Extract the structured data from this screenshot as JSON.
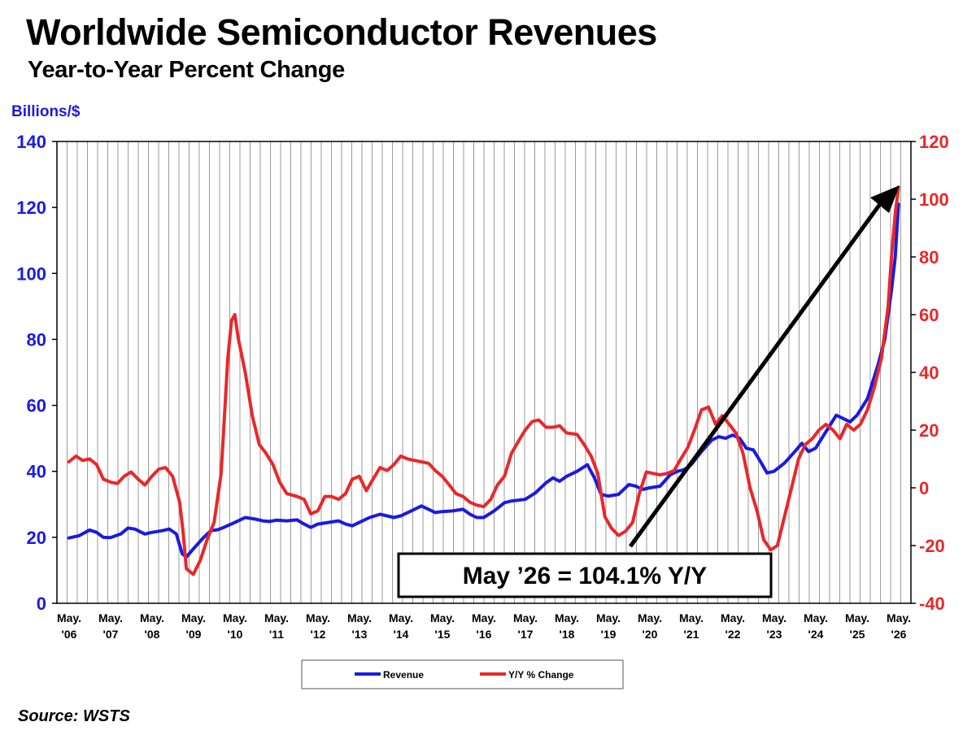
{
  "chart_data": {
    "type": "line",
    "title": "Worldwide Semiconductor Revenues",
    "subtitle": "Year-to-Year Percent Change",
    "source": "Source: WSTS",
    "ylabel_left": "Billions/$",
    "ylabel_right": "",
    "ylim_left": [
      0,
      140
    ],
    "ylim_right": [
      -40,
      120
    ],
    "yticks_left": [
      "0",
      "20",
      "40",
      "60",
      "80",
      "100",
      "120",
      "140"
    ],
    "yticks_right": [
      "-40",
      "-20",
      "0",
      "20",
      "40",
      "60",
      "80",
      "100",
      "120"
    ],
    "x_ticks": [
      {
        "top": "May.",
        "bottom": "'06"
      },
      {
        "top": "May.",
        "bottom": "'07"
      },
      {
        "top": "May.",
        "bottom": "'08"
      },
      {
        "top": "May.",
        "bottom": "'09"
      },
      {
        "top": "May.",
        "bottom": "'10"
      },
      {
        "top": "May.",
        "bottom": "'11"
      },
      {
        "top": "May.",
        "bottom": "'12"
      },
      {
        "top": "May.",
        "bottom": "'13"
      },
      {
        "top": "May.",
        "bottom": "'14"
      },
      {
        "top": "May.",
        "bottom": "'15"
      },
      {
        "top": "May.",
        "bottom": "'16"
      },
      {
        "top": "May.",
        "bottom": "'17"
      },
      {
        "top": "May.",
        "bottom": "'18"
      },
      {
        "top": "May.",
        "bottom": "'19"
      },
      {
        "top": "May.",
        "bottom": "'20"
      },
      {
        "top": "May.",
        "bottom": "'21"
      },
      {
        "top": "May.",
        "bottom": "'22"
      },
      {
        "top": "May.",
        "bottom": "'23"
      },
      {
        "top": "May.",
        "bottom": "'24"
      },
      {
        "top": "May.",
        "bottom": "'25"
      },
      {
        "top": "May.",
        "bottom": "'26"
      }
    ],
    "grid": true,
    "legend_position": "bottom-center",
    "annotation": "May ’26 = 104.1% Y/Y",
    "series": [
      {
        "name": "Revenue",
        "axis": "left",
        "color": "#1a1ae0",
        "points": [
          [
            2006.37,
            19.8
          ],
          [
            2006.62,
            20.5
          ],
          [
            2006.87,
            22.2
          ],
          [
            2007.04,
            21.5
          ],
          [
            2007.2,
            20.0
          ],
          [
            2007.37,
            19.9
          ],
          [
            2007.62,
            21.0
          ],
          [
            2007.79,
            22.8
          ],
          [
            2007.96,
            22.5
          ],
          [
            2008.2,
            21.0
          ],
          [
            2008.37,
            21.5
          ],
          [
            2008.62,
            22.0
          ],
          [
            2008.79,
            22.5
          ],
          [
            2008.96,
            21.0
          ],
          [
            2009.1,
            15.0
          ],
          [
            2009.2,
            14.0
          ],
          [
            2009.37,
            16.5
          ],
          [
            2009.62,
            20.0
          ],
          [
            2009.79,
            22.0
          ],
          [
            2009.96,
            22.3
          ],
          [
            2010.1,
            23.0
          ],
          [
            2010.37,
            24.5
          ],
          [
            2010.62,
            26.0
          ],
          [
            2010.87,
            25.5
          ],
          [
            2011.04,
            25.0
          ],
          [
            2011.2,
            24.8
          ],
          [
            2011.37,
            25.2
          ],
          [
            2011.62,
            25.0
          ],
          [
            2011.87,
            25.3
          ],
          [
            2012.04,
            24.0
          ],
          [
            2012.2,
            23.0
          ],
          [
            2012.37,
            24.0
          ],
          [
            2012.62,
            24.5
          ],
          [
            2012.87,
            25.0
          ],
          [
            2013.04,
            24.0
          ],
          [
            2013.2,
            23.5
          ],
          [
            2013.37,
            24.5
          ],
          [
            2013.62,
            26.0
          ],
          [
            2013.87,
            27.0
          ],
          [
            2014.04,
            26.5
          ],
          [
            2014.2,
            26.0
          ],
          [
            2014.37,
            26.5
          ],
          [
            2014.62,
            28.0
          ],
          [
            2014.87,
            29.5
          ],
          [
            2015.04,
            28.5
          ],
          [
            2015.2,
            27.5
          ],
          [
            2015.37,
            27.8
          ],
          [
            2015.62,
            28.0
          ],
          [
            2015.87,
            28.5
          ],
          [
            2016.04,
            27.0
          ],
          [
            2016.2,
            26.0
          ],
          [
            2016.37,
            26.0
          ],
          [
            2016.62,
            28.0
          ],
          [
            2016.87,
            30.5
          ],
          [
            2017.04,
            31.0
          ],
          [
            2017.37,
            31.5
          ],
          [
            2017.62,
            33.5
          ],
          [
            2017.87,
            36.5
          ],
          [
            2018.04,
            38.0
          ],
          [
            2018.2,
            37.0
          ],
          [
            2018.37,
            38.5
          ],
          [
            2018.62,
            40.0
          ],
          [
            2018.87,
            42.0
          ],
          [
            2019.04,
            38.0
          ],
          [
            2019.2,
            33.0
          ],
          [
            2019.37,
            32.5
          ],
          [
            2019.62,
            33.0
          ],
          [
            2019.87,
            36.0
          ],
          [
            2020.04,
            35.5
          ],
          [
            2020.2,
            34.5
          ],
          [
            2020.37,
            35.0
          ],
          [
            2020.62,
            35.5
          ],
          [
            2020.87,
            39.0
          ],
          [
            2021.04,
            40.0
          ],
          [
            2021.2,
            40.5
          ],
          [
            2021.37,
            42.0
          ],
          [
            2021.62,
            46.0
          ],
          [
            2021.87,
            49.5
          ],
          [
            2022.04,
            50.5
          ],
          [
            2022.2,
            50.0
          ],
          [
            2022.37,
            51.0
          ],
          [
            2022.54,
            50.0
          ],
          [
            2022.7,
            47.0
          ],
          [
            2022.87,
            46.5
          ],
          [
            2023.04,
            43.0
          ],
          [
            2023.2,
            39.5
          ],
          [
            2023.37,
            40.0
          ],
          [
            2023.62,
            42.5
          ],
          [
            2023.87,
            46.0
          ],
          [
            2024.04,
            48.5
          ],
          [
            2024.2,
            46.0
          ],
          [
            2024.37,
            47.0
          ],
          [
            2024.62,
            52.0
          ],
          [
            2024.87,
            57.0
          ],
          [
            2025.04,
            56.0
          ],
          [
            2025.2,
            55.0
          ],
          [
            2025.37,
            57.0
          ],
          [
            2025.62,
            62.0
          ],
          [
            2025.87,
            72.0
          ],
          [
            2026.04,
            80.0
          ],
          [
            2026.2,
            95.0
          ],
          [
            2026.29,
            105.0
          ],
          [
            2026.37,
            121.0
          ]
        ]
      },
      {
        "name": "Y/Y % Change",
        "axis": "right",
        "color": "#e8282a",
        "points": [
          [
            2006.37,
            9.0
          ],
          [
            2006.54,
            11.0
          ],
          [
            2006.7,
            9.5
          ],
          [
            2006.87,
            10.0
          ],
          [
            2007.04,
            8.0
          ],
          [
            2007.2,
            3.0
          ],
          [
            2007.37,
            2.0
          ],
          [
            2007.54,
            1.5
          ],
          [
            2007.7,
            4.0
          ],
          [
            2007.87,
            5.5
          ],
          [
            2008.04,
            3.0
          ],
          [
            2008.2,
            1.0
          ],
          [
            2008.37,
            4.0
          ],
          [
            2008.54,
            6.5
          ],
          [
            2008.7,
            7.0
          ],
          [
            2008.87,
            4.0
          ],
          [
            2009.04,
            -5.0
          ],
          [
            2009.12,
            -15.0
          ],
          [
            2009.2,
            -28.0
          ],
          [
            2009.37,
            -30.0
          ],
          [
            2009.54,
            -25.0
          ],
          [
            2009.7,
            -18.0
          ],
          [
            2009.87,
            -12.0
          ],
          [
            2010.04,
            5.0
          ],
          [
            2010.12,
            25.0
          ],
          [
            2010.2,
            45.0
          ],
          [
            2010.29,
            58.0
          ],
          [
            2010.37,
            60.0
          ],
          [
            2010.45,
            52.0
          ],
          [
            2010.62,
            40.0
          ],
          [
            2010.79,
            25.0
          ],
          [
            2010.96,
            15.0
          ],
          [
            2011.12,
            12.0
          ],
          [
            2011.29,
            8.0
          ],
          [
            2011.45,
            2.0
          ],
          [
            2011.62,
            -2.0
          ],
          [
            2011.87,
            -3.0
          ],
          [
            2012.04,
            -4.0
          ],
          [
            2012.2,
            -9.0
          ],
          [
            2012.37,
            -8.0
          ],
          [
            2012.54,
            -3.0
          ],
          [
            2012.7,
            -3.0
          ],
          [
            2012.87,
            -4.0
          ],
          [
            2013.04,
            -2.0
          ],
          [
            2013.2,
            3.0
          ],
          [
            2013.37,
            4.0
          ],
          [
            2013.54,
            -1.0
          ],
          [
            2013.7,
            3.0
          ],
          [
            2013.87,
            7.0
          ],
          [
            2014.04,
            6.0
          ],
          [
            2014.2,
            8.0
          ],
          [
            2014.37,
            11.0
          ],
          [
            2014.54,
            10.0
          ],
          [
            2014.7,
            9.5
          ],
          [
            2014.87,
            9.0
          ],
          [
            2015.04,
            8.5
          ],
          [
            2015.2,
            6.0
          ],
          [
            2015.37,
            4.0
          ],
          [
            2015.54,
            1.0
          ],
          [
            2015.7,
            -2.0
          ],
          [
            2015.87,
            -3.0
          ],
          [
            2016.04,
            -5.0
          ],
          [
            2016.2,
            -6.0
          ],
          [
            2016.37,
            -6.5
          ],
          [
            2016.54,
            -4.0
          ],
          [
            2016.7,
            1.0
          ],
          [
            2016.87,
            4.0
          ],
          [
            2017.04,
            12.0
          ],
          [
            2017.2,
            16.0
          ],
          [
            2017.37,
            20.0
          ],
          [
            2017.54,
            23.0
          ],
          [
            2017.7,
            23.5
          ],
          [
            2017.87,
            21.0
          ],
          [
            2018.04,
            21.0
          ],
          [
            2018.2,
            21.5
          ],
          [
            2018.37,
            19.0
          ],
          [
            2018.62,
            18.5
          ],
          [
            2018.79,
            15.0
          ],
          [
            2018.96,
            11.0
          ],
          [
            2019.12,
            5.0
          ],
          [
            2019.29,
            -10.0
          ],
          [
            2019.45,
            -14.0
          ],
          [
            2019.62,
            -16.5
          ],
          [
            2019.79,
            -15.0
          ],
          [
            2019.96,
            -12.0
          ],
          [
            2020.12,
            -2.0
          ],
          [
            2020.29,
            5.5
          ],
          [
            2020.45,
            5.0
          ],
          [
            2020.62,
            4.5
          ],
          [
            2020.79,
            5.0
          ],
          [
            2020.96,
            6.0
          ],
          [
            2021.12,
            10.0
          ],
          [
            2021.29,
            14.0
          ],
          [
            2021.45,
            20.0
          ],
          [
            2021.62,
            27.0
          ],
          [
            2021.79,
            28.0
          ],
          [
            2021.96,
            22.0
          ],
          [
            2022.12,
            25.0
          ],
          [
            2022.29,
            22.0
          ],
          [
            2022.45,
            19.0
          ],
          [
            2022.62,
            12.0
          ],
          [
            2022.79,
            0.0
          ],
          [
            2022.96,
            -8.0
          ],
          [
            2023.12,
            -18.0
          ],
          [
            2023.29,
            -21.5
          ],
          [
            2023.45,
            -20.0
          ],
          [
            2023.62,
            -10.0
          ],
          [
            2023.79,
            0.0
          ],
          [
            2023.96,
            10.0
          ],
          [
            2024.12,
            15.0
          ],
          [
            2024.29,
            17.0
          ],
          [
            2024.45,
            20.0
          ],
          [
            2024.62,
            22.0
          ],
          [
            2024.79,
            20.0
          ],
          [
            2024.96,
            17.0
          ],
          [
            2025.12,
            22.0
          ],
          [
            2025.29,
            20.0
          ],
          [
            2025.45,
            22.0
          ],
          [
            2025.62,
            27.0
          ],
          [
            2025.79,
            35.0
          ],
          [
            2025.96,
            45.0
          ],
          [
            2026.12,
            63.0
          ],
          [
            2026.2,
            80.0
          ],
          [
            2026.29,
            95.0
          ],
          [
            2026.37,
            104.1
          ]
        ]
      }
    ]
  }
}
